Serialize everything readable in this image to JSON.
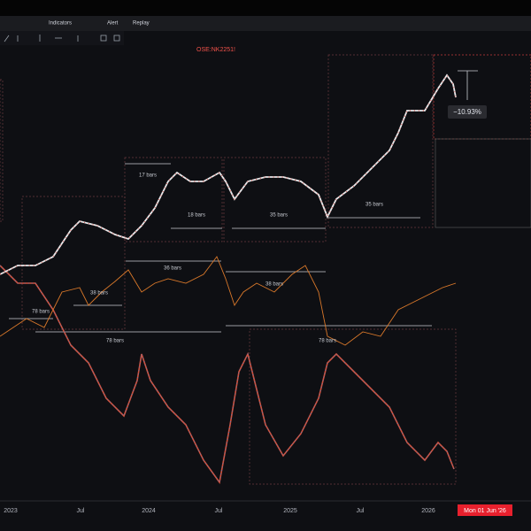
{
  "toolbar": {
    "items": [
      "Indicators",
      "Alert",
      "Replay"
    ]
  },
  "symbol": "OSE:NK2251!",
  "annotations": [
    "17 bars",
    "18 bars",
    "35 bars",
    "35 bars",
    "36 bars",
    "38 bars",
    "38 bars",
    "78 bars",
    "78 bars",
    "78 bars"
  ],
  "measure": "−10.93%",
  "x_axis": [
    "2023",
    "Jul",
    "2024",
    "Jul",
    "2025",
    "Jul",
    "2026"
  ],
  "cursor_date": "Mon 01 Jun '26"
}
